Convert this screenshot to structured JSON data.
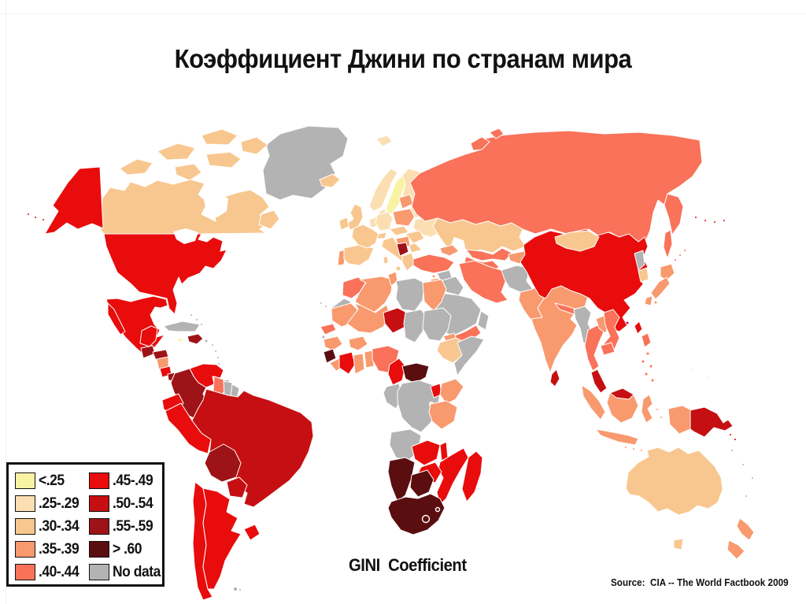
{
  "slide": {
    "title": "Коэффициент Джини по странам мира",
    "map_caption": "GINI  Coefficient",
    "source": "Source:  CIA -- The World Factbook 2009"
  },
  "legend": {
    "items": [
      {
        "label": "<.25",
        "key": "c1"
      },
      {
        "label": ".25-.29",
        "key": "c2"
      },
      {
        "label": ".30-.34",
        "key": "c3"
      },
      {
        "label": ".35-.39",
        "key": "c4"
      },
      {
        "label": ".40-.44",
        "key": "c5"
      },
      {
        "label": ".45-.49",
        "key": "c6"
      },
      {
        "label": ".50-.54",
        "key": "c7"
      },
      {
        "label": ".55-.59",
        "key": "c8"
      },
      {
        "label": "> .60",
        "key": "c9"
      },
      {
        "label": "No data",
        "key": "nodata"
      }
    ],
    "colors": {
      "c1": "#F8F3A3",
      "c2": "#FBDFB2",
      "c3": "#F8C78F",
      "c4": "#F8996E",
      "c5": "#F97259",
      "c6": "#E80C0C",
      "c7": "#C60F12",
      "c8": "#9D1317",
      "c9": "#5B0E10",
      "nodata": "#B3B3B3",
      "hk": "#C2087E"
    }
  },
  "map": {
    "regions": {
      "greenland": "nodata",
      "canada": "c3",
      "alaska": "c6",
      "usa": "c6",
      "mexico": "c6",
      "guatemala": "c8",
      "honduras": "c8",
      "nicaragua": "c4",
      "costarica": "c6",
      "panama": "c8",
      "cuba": "nodata",
      "jamaica": "c1",
      "hispaniola": "c8",
      "puertorico": "nodata",
      "bahamas": "nodata",
      "antilles": "nodata",
      "trinidad": "nodata",
      "venezuela": "c6",
      "colombia": "c8",
      "guyana": "c5",
      "suriname": "nodata",
      "frguiana": "nodata",
      "ecuador": "c6",
      "peru": "c6",
      "brazil": "c7",
      "bolivia": "c8",
      "paraguay": "c7",
      "uruguay": "c6",
      "chile": "c6",
      "argentina": "c6",
      "falklands": "nodata",
      "iceland": "c3",
      "norway": "c2",
      "sweden": "c1",
      "finland": "c2",
      "denmark": "c2",
      "uk": "c3",
      "ireland": "c3",
      "portugal": "c4",
      "spain": "c3",
      "france": "c3",
      "benelux": "c2",
      "germany": "c2",
      "switzerland": "c3",
      "italy": "c3",
      "austria_cz": "c3",
      "poland": "c4",
      "baltics": "c4",
      "belarus": "c2",
      "ukraine": "c2",
      "romania": "c3",
      "bulgaria": "c3",
      "balkans": "c4",
      "bosnia": "c8",
      "greece": "c3",
      "svalbard": "c2",
      "russia": "c5",
      "kamchatka": "c5",
      "sakhalin": "c5",
      "kurils": "c5",
      "novaya": "c5",
      "kazakhstan": "c3",
      "uzbekistan": "c5",
      "turkmenistan": "c5",
      "kyrgyz_tajik": "c4",
      "caucasus": "c4",
      "turkey": "c5",
      "cyprus": "c4",
      "syria": "nodata",
      "iraq": "nodata",
      "israel_jordan": "c4",
      "saudi": "nodata",
      "yemen": "c5",
      "oman": "nodata",
      "iran": "c5",
      "afghanistan": "nodata",
      "pakistan": "c4",
      "india": "c4",
      "nepal": "c5",
      "bangladesh": "c3",
      "srilanka": "c7",
      "china": "c6",
      "mongolia": "c3",
      "nkorea": "nodata",
      "skorea": "c3",
      "japan": "c4",
      "taiwan": "c6",
      "hongkong": "hk",
      "myanmar": "nodata",
      "thailand": "c5",
      "laos": "c4",
      "vietnam": "c5",
      "cambodia": "c5",
      "malaysia": "c7",
      "indonesia": "c4",
      "borneo_my": "c7",
      "westpapua": "c4",
      "png": "c7",
      "solomon": "c7",
      "philippines": "c5",
      "micronesia": "nodata",
      "australia": "c3",
      "tasmania": "c3",
      "nz": "c4",
      "pacific": "nodata",
      "morocco": "c5",
      "wsahara": "nodata",
      "canary": "nodata",
      "algeria": "c4",
      "tunisia": "c4",
      "libya": "nodata",
      "egypt": "c4",
      "mauritania": "c4",
      "mali": "c4",
      "niger": "c7",
      "chad": "nodata",
      "sudan": "nodata",
      "eritrea": "c4",
      "ethiopia": "c3",
      "somalia": "nodata",
      "senegal": "c5",
      "guineabissau": "nodata",
      "guinea": "c4",
      "sierraleone": "c9",
      "liberia": "c4",
      "ivorycoast": "c6",
      "ghana": "c4",
      "togo_benin": "c4",
      "burkina": "c4",
      "nigeria": "c5",
      "cameroon": "c6",
      "car": "c9",
      "congo_gabon": "nodata",
      "drc": "nodata",
      "uganda": "c6",
      "rwanda": "c1",
      "kenya": "c4",
      "tanzania": "c4",
      "angola": "nodata",
      "zambia": "c6",
      "malawi": "c6",
      "mozambique": "c6",
      "zimbabwe": "c6",
      "madagascar": "c6",
      "namibia": "c9",
      "botswana": "c9",
      "southafrica": "c9"
    }
  }
}
